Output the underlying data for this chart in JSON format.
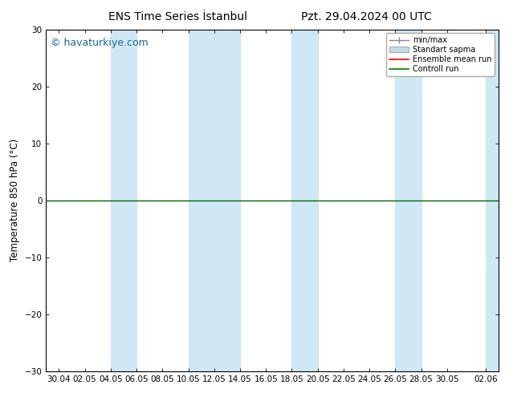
{
  "title_left": "ENS Time Series İstanbul",
  "title_right": "Pzt. 29.04.2024 00 UTC",
  "ylabel": "Temperature 850 hPa (°C)",
  "ylim": [
    -30,
    30
  ],
  "yticks": [
    -30,
    -20,
    -10,
    0,
    10,
    20,
    30
  ],
  "xtick_labels": [
    "30.04",
    "02.05",
    "04.05",
    "06.05",
    "08.05",
    "10.05",
    "12.05",
    "14.05",
    "16.05",
    "18.05",
    "20.05",
    "22.05",
    "24.05",
    "26.05",
    "28.05",
    "30.05",
    "02.06"
  ],
  "watermark": "© havaturkiye.com",
  "bg_color": "#ffffff",
  "band_color": "#d0e8f5",
  "band_alpha": 1.0,
  "legend_items": [
    "min/max",
    "Standart sapma",
    "Ensemble mean run",
    "Controll run"
  ],
  "legend_colors": [
    "#888888",
    "#b0c8d8",
    "#ff0000",
    "#008000"
  ],
  "hline_y": 0,
  "hline_color": "#006400",
  "title_fontsize": 10,
  "tick_fontsize": 7.5,
  "watermark_color": "#1a6699",
  "watermark_fontsize": 9,
  "band_indices": [
    2,
    3,
    8,
    9,
    10,
    14,
    15,
    22,
    23,
    24,
    30,
    31,
    32
  ]
}
